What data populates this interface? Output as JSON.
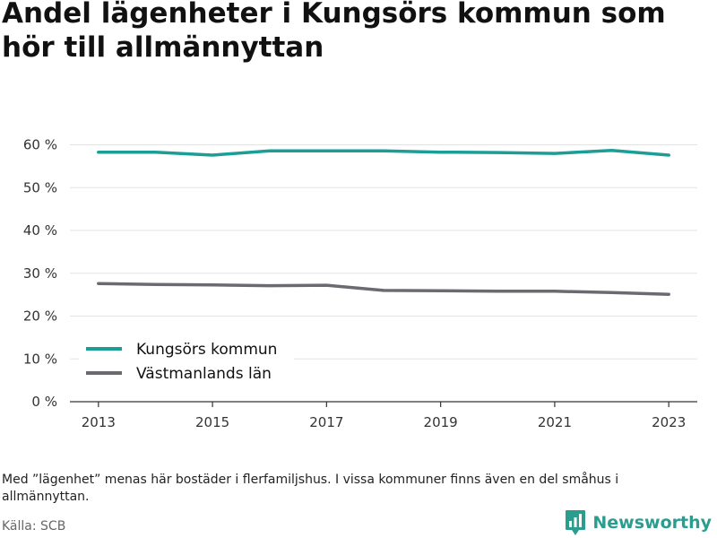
{
  "title": "Andel lägenheter i Kungsörs kommun som hör till allmännyttan",
  "note": "Med ”lägenhet” menas här bostäder i flerfamiljshus. I vissa kommuner finns även en del småhus i allmännyttan.",
  "source": "Källa: SCB",
  "brand": {
    "name": "Newsworthy",
    "icon": "newsworthy-logo-icon",
    "color": "#2a9d8f"
  },
  "chart_data": {
    "type": "line",
    "title": "Andel lägenheter i Kungsörs kommun som hör till allmännyttan",
    "xlabel": "",
    "ylabel": "",
    "x": [
      2013,
      2014,
      2015,
      2016,
      2017,
      2018,
      2019,
      2020,
      2021,
      2022,
      2023
    ],
    "x_ticks": [
      "2013",
      "2015",
      "2017",
      "2019",
      "2021",
      "2023"
    ],
    "y_ticks": [
      "0 %",
      "10 %",
      "20 %",
      "30 %",
      "40 %",
      "50 %",
      "60 %"
    ],
    "ylim": [
      0,
      60
    ],
    "grid": true,
    "legend_position": "bottom-left",
    "series": [
      {
        "name": "Kungsörs kommun",
        "color": "#1a9e96",
        "values": [
          58.3,
          58.3,
          57.6,
          58.6,
          58.6,
          58.6,
          58.3,
          58.2,
          58.0,
          58.7,
          57.6
        ]
      },
      {
        "name": "Västmanlands län",
        "color": "#6b6a70",
        "values": [
          27.6,
          27.4,
          27.3,
          27.1,
          27.2,
          26.0,
          25.9,
          25.8,
          25.8,
          25.5,
          25.1
        ]
      }
    ]
  }
}
